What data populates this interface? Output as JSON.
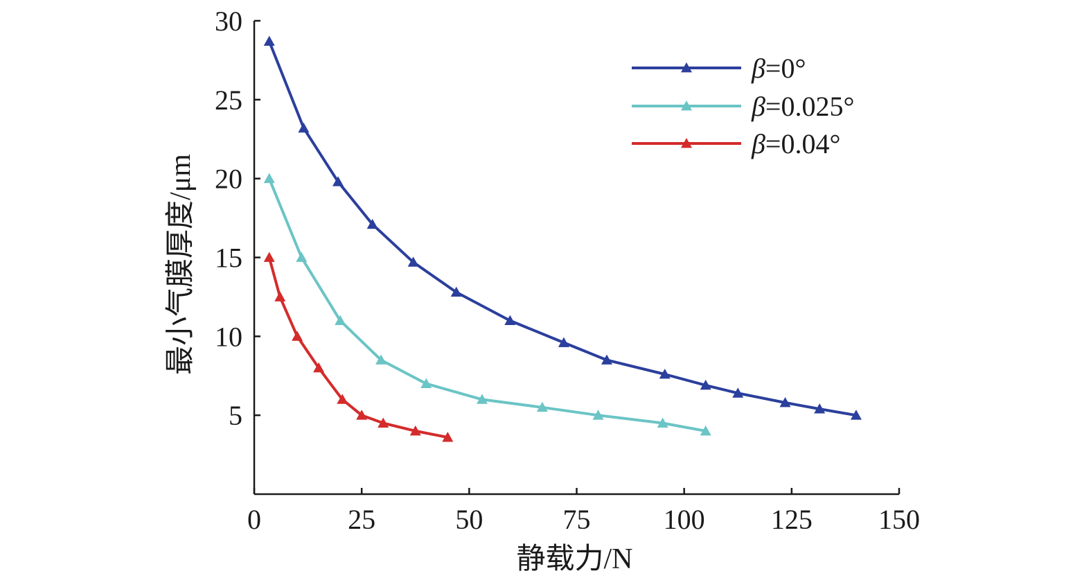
{
  "chart_data": {
    "type": "line",
    "title": "",
    "xlabel": "静载力/N",
    "ylabel": "最小气膜厚度/μm",
    "xlim": [
      0,
      150
    ],
    "ylim": [
      0,
      30
    ],
    "x_ticks": [
      {
        "value": 0,
        "label": "0"
      },
      {
        "value": 25,
        "label": "25"
      },
      {
        "value": 50,
        "label": "50"
      },
      {
        "value": 75,
        "label": "75"
      },
      {
        "value": 100,
        "label": "100"
      },
      {
        "value": 125,
        "label": "125"
      },
      {
        "value": 150,
        "label": "150"
      }
    ],
    "y_ticks": [
      {
        "value": 5,
        "label": "5"
      },
      {
        "value": 10,
        "label": "10"
      },
      {
        "value": 15,
        "label": "15"
      },
      {
        "value": 20,
        "label": "20"
      },
      {
        "value": 25,
        "label": "25"
      },
      {
        "value": 30,
        "label": "30"
      }
    ],
    "grid": false,
    "legend_position": "top-right",
    "marker": "triangle",
    "series": [
      {
        "name": "β=0°",
        "symbol": "β",
        "value_text": "=0°",
        "color": "#2b3f9c",
        "points": [
          [
            3.5,
            28.7
          ],
          [
            11.5,
            23.2
          ],
          [
            19.5,
            19.8
          ],
          [
            27.5,
            17.1
          ],
          [
            37,
            14.7
          ],
          [
            47,
            12.8
          ],
          [
            59.5,
            11.0
          ],
          [
            72,
            9.6
          ],
          [
            82,
            8.5
          ],
          [
            95.5,
            7.6
          ],
          [
            105,
            6.9
          ],
          [
            112.5,
            6.4
          ],
          [
            123.5,
            5.8
          ],
          [
            131.5,
            5.4
          ],
          [
            140,
            5.0
          ]
        ]
      },
      {
        "name": "β=0.025°",
        "symbol": "β",
        "value_text": "=0.025°",
        "color": "#6bc4c5",
        "points": [
          [
            3.5,
            20.0
          ],
          [
            11,
            15.0
          ],
          [
            20,
            11.0
          ],
          [
            29.5,
            8.5
          ],
          [
            40,
            7.0
          ],
          [
            53,
            6.0
          ],
          [
            67,
            5.5
          ],
          [
            80,
            5.0
          ],
          [
            95,
            4.5
          ],
          [
            105,
            4.0
          ]
        ]
      },
      {
        "name": "β=0.04°",
        "symbol": "β",
        "value_text": "=0.04°",
        "color": "#d42b2b",
        "points": [
          [
            3.5,
            15.0
          ],
          [
            6,
            12.5
          ],
          [
            10,
            10.0
          ],
          [
            15,
            8.0
          ],
          [
            20.5,
            6.0
          ],
          [
            25,
            5.0
          ],
          [
            30,
            4.5
          ],
          [
            37.5,
            4.0
          ],
          [
            45,
            3.6
          ]
        ]
      }
    ]
  }
}
